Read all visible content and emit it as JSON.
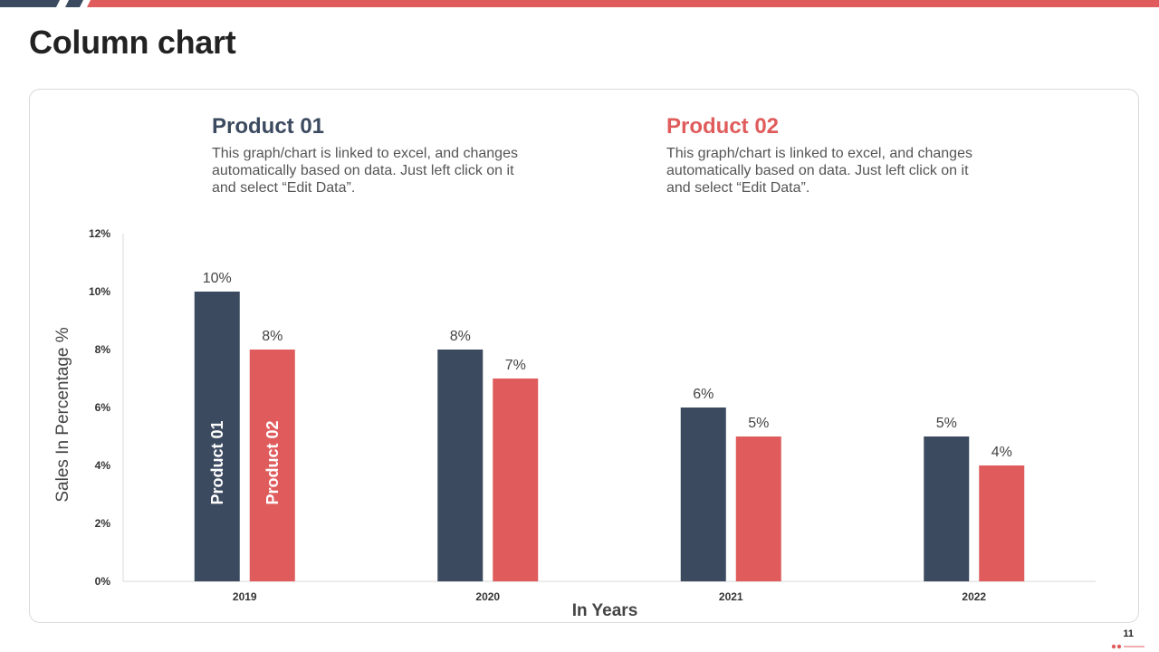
{
  "page": {
    "title": "Column chart",
    "page_number": "11"
  },
  "colors": {
    "product_01": "#3b4a5f",
    "product_02": "#e05c5c",
    "accent": "#e05c5c",
    "axis_text": "#333333",
    "data_label": "#444444"
  },
  "legend": [
    {
      "title": "Product 01",
      "description": "This graph/chart is linked to excel, and changes automatically based on data. Just left click on it and select “Edit Data”."
    },
    {
      "title": "Product 02",
      "description": "This graph/chart is linked to excel, and changes automatically based on data. Just left click on it and select “Edit Data”."
    }
  ],
  "chart_data": {
    "type": "bar",
    "title": "",
    "xlabel": "In Years",
    "ylabel": "Sales In Percentage %",
    "categories": [
      "2019",
      "2020",
      "2021",
      "2022"
    ],
    "series": [
      {
        "name": "Product 01",
        "values": [
          10,
          8,
          6,
          5
        ],
        "color": "#3b4a5f"
      },
      {
        "name": "Product 02",
        "values": [
          8,
          7,
          5,
          4
        ],
        "color": "#e05c5c"
      }
    ],
    "ylim": [
      0,
      12
    ],
    "yticks": [
      0,
      2,
      4,
      6,
      8,
      10,
      12
    ],
    "ytick_labels": [
      "0%",
      "2%",
      "4%",
      "6%",
      "8%",
      "10%",
      "12%"
    ],
    "data_labels": [
      [
        "10%",
        "8%",
        "6%",
        "5%"
      ],
      [
        "8%",
        "7%",
        "5%",
        "4%"
      ]
    ],
    "grid": false,
    "legend": "in-bar labels on first category"
  }
}
